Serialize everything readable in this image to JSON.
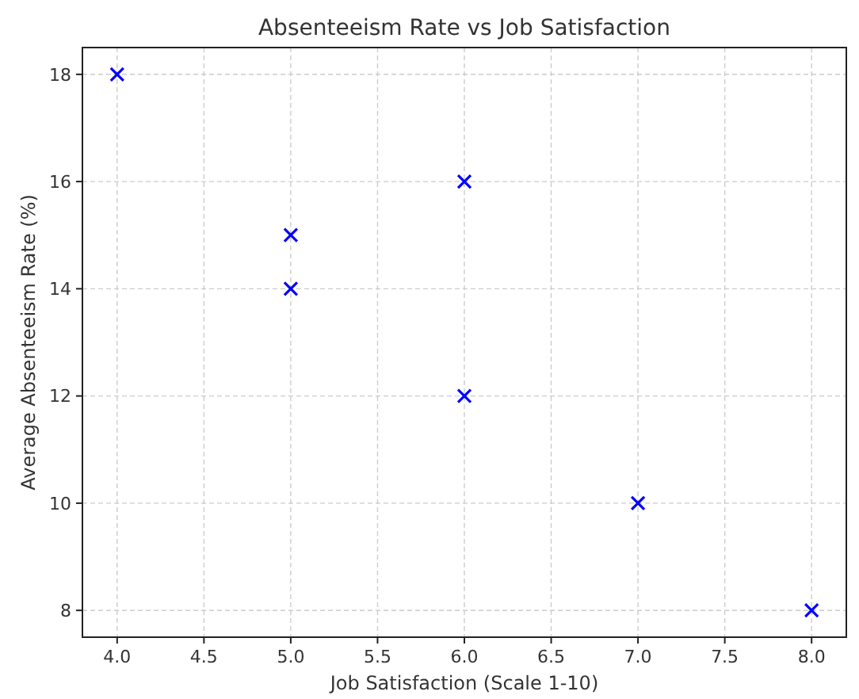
{
  "chart_data": {
    "type": "scatter",
    "title": "Absenteeism Rate vs Job Satisfaction",
    "xlabel": "Job Satisfaction (Scale 1-10)",
    "ylabel": "Average Absenteeism Rate (%)",
    "x": [
      4,
      5,
      5,
      6,
      6,
      7,
      8
    ],
    "series": [
      {
        "color": "#0000ff",
        "values": [
          18,
          15,
          14,
          16,
          12,
          10,
          8
        ]
      }
    ],
    "xlim": [
      3.8,
      8.2
    ],
    "xticks": [
      {
        "value": 4,
        "label": "4.0"
      },
      {
        "value": 4.5,
        "label": "4.5"
      },
      {
        "value": 5,
        "label": "5.0"
      },
      {
        "value": 5.5,
        "label": "5.5"
      },
      {
        "value": 6,
        "label": "6.0"
      },
      {
        "value": 6.5,
        "label": "6.5"
      },
      {
        "value": 7,
        "label": "7.0"
      },
      {
        "value": 7.5,
        "label": "7.5"
      },
      {
        "value": 8,
        "label": "8.0"
      }
    ],
    "ylim": [
      7.5,
      18.5
    ],
    "yticks": [
      8,
      10,
      12,
      14,
      16,
      18
    ],
    "grid": true,
    "marker": "cross"
  }
}
